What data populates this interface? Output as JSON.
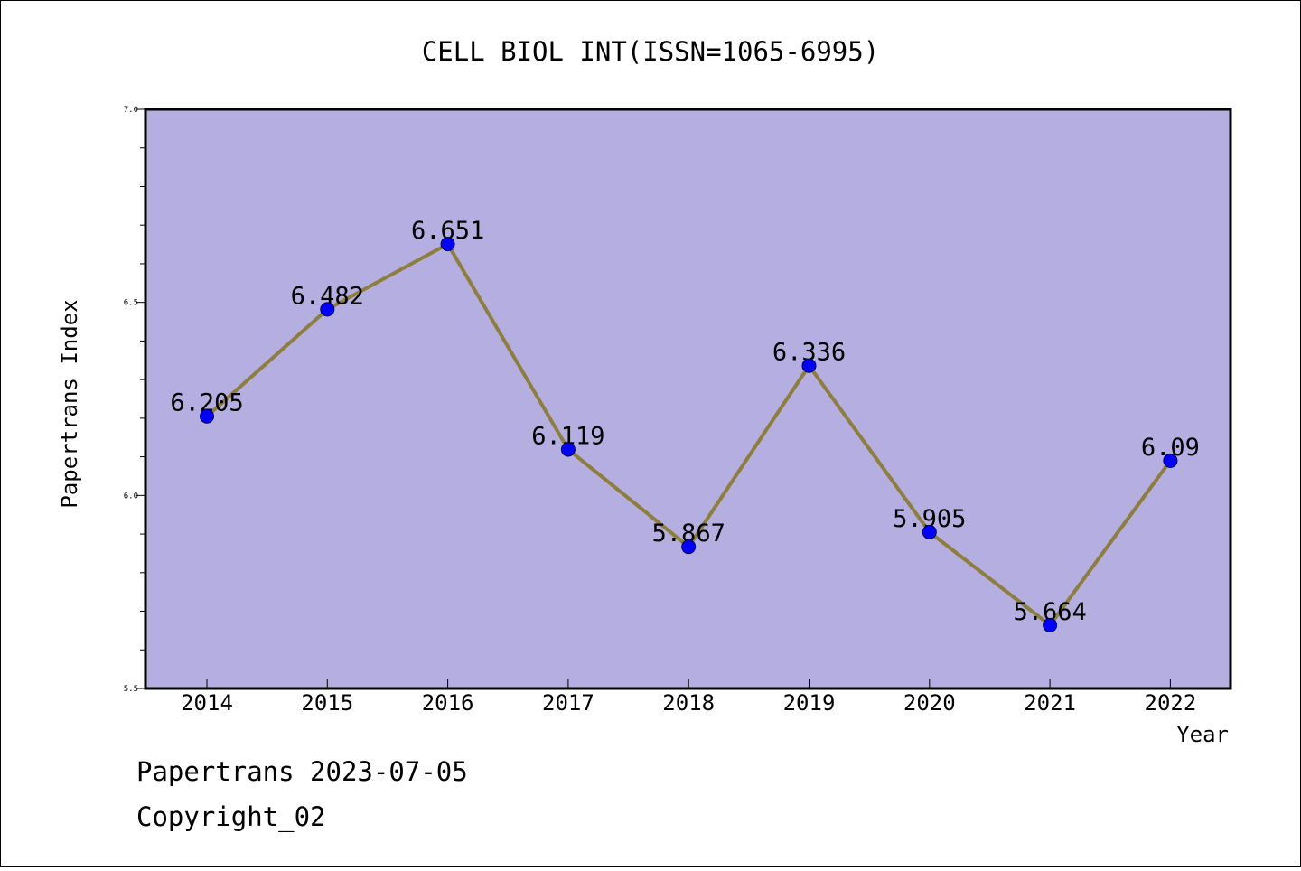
{
  "chart_data": {
    "type": "line",
    "title": "CELL BIOL INT(ISSN=1065-6995)",
    "xlabel": "Year",
    "ylabel": "Papertrans Index",
    "categories": [
      "2014",
      "2015",
      "2016",
      "2017",
      "2018",
      "2019",
      "2020",
      "2021",
      "2022"
    ],
    "series": [
      {
        "values": [
          6.205,
          6.482,
          6.651,
          6.119,
          5.867,
          6.336,
          5.905,
          5.664,
          6.09
        ],
        "labels": [
          "6.205",
          "6.482",
          "6.651",
          "6.119",
          "5.867",
          "6.336",
          "5.905",
          "5.664",
          "6.09"
        ]
      }
    ],
    "ylim": [
      5.5,
      7.0
    ],
    "yticks": [
      "5.5",
      "6.0",
      "6.5",
      "7.0"
    ],
    "grid": false,
    "colors": {
      "plot_background": "#b5aee1",
      "line": "#8d7f3b",
      "marker": "#0000ff"
    }
  },
  "footer": {
    "line1": "Papertrans 2023-07-05",
    "line2": "Copyright_02"
  }
}
